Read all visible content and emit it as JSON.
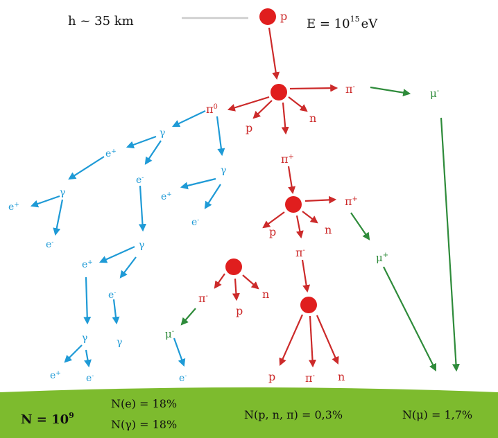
{
  "colors": {
    "red": "#cc2a2a",
    "node": "#e01e1e",
    "blue": "#1e9ad6",
    "green": "#2e8b3a",
    "ground": "#7dbb2e",
    "text_dark": "#111111"
  },
  "header": {
    "altitude": "h ~ 35 km",
    "energy_prefix": "E = 10",
    "energy_exp": "15",
    "energy_unit": "eV",
    "primary_label": "p"
  },
  "labels": {
    "pi0": "π",
    "pi0_sup": "0",
    "pi_minus": "π",
    "minus": "-",
    "pi_plus": "π",
    "plus": "+",
    "p": "p",
    "n": "n",
    "gamma": "γ",
    "e_minus": "e",
    "e_plus": "e",
    "mu_minus": "μ",
    "mu_plus": "μ"
  },
  "ground": {
    "total_prefix": "N = 10",
    "total_exp": "9",
    "electrons": "N(e) = 18%",
    "photons": "N(γ) = 18%",
    "hadrons": "N(p, n, π) = 0,3%",
    "muons": "N(μ) = 1,7%"
  }
}
